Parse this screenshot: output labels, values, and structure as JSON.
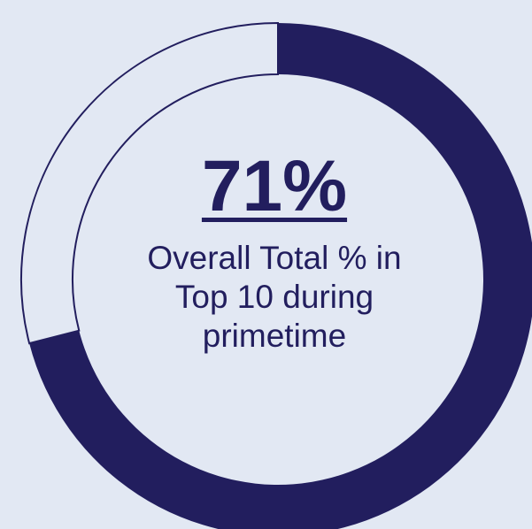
{
  "chart_data": {
    "type": "pie",
    "title": "",
    "values": [
      71,
      29
    ],
    "unit": "%",
    "colors": {
      "filled": "#221e5e",
      "remainder": "#e2e8f3",
      "remainder_stroke": "#221e5e",
      "background": "#e2e8f3"
    }
  },
  "center_label": {
    "value": "71%",
    "lines": [
      "Overall Total % in",
      "Top 10 during",
      "primetime"
    ]
  }
}
